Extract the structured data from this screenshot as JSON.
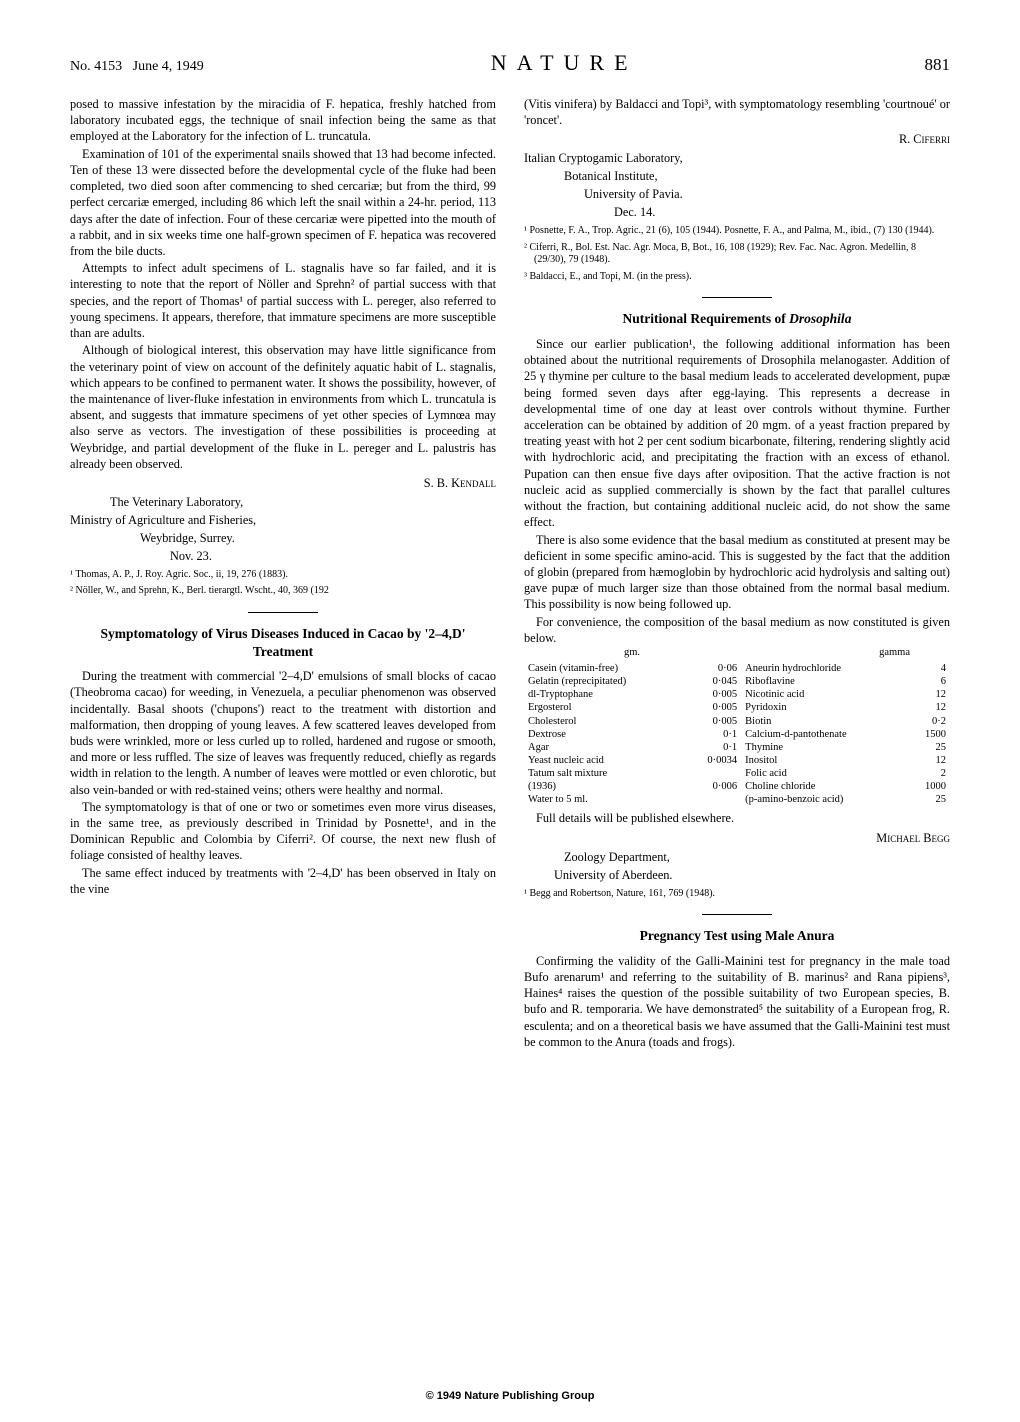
{
  "header": {
    "issue": "No. 4153",
    "date": "June 4, 1949",
    "journal": "NATURE",
    "page": "881"
  },
  "col1": {
    "p1": "posed to massive infestation by the miracidia of F. hepatica, freshly hatched from laboratory incubated eggs, the technique of snail infection being the same as that employed at the Laboratory for the infection of L. truncatula.",
    "p2": "Examination of 101 of the experimental snails showed that 13 had become infected. Ten of these 13 were dissected before the developmental cycle of the fluke had been completed, two died soon after commencing to shed cercariæ; but from the third, 99 perfect cercariæ emerged, including 86 which left the snail within a 24-hr. period, 113 days after the date of infection. Four of these cercariæ were pipetted into the mouth of a rabbit, and in six weeks time one half-grown specimen of F. hepatica was recovered from the bile ducts.",
    "p3": "Attempts to infect adult specimens of L. stagnalis have so far failed, and it is interesting to note that the report of Nöller and Sprehn² of partial success with that species, and the report of Thomas¹ of partial success with L. pereger, also referred to young specimens. It appears, therefore, that immature specimens are more susceptible than are adults.",
    "p4": "Although of biological interest, this observation may have little significance from the veterinary point of view on account of the definitely aquatic habit of L. stagnalis, which appears to be confined to permanent water. It shows the possibility, however, of the maintenance of liver-fluke infestation in environments from which L. truncatula is absent, and suggests that immature specimens of yet other species of Lymnœa may also serve as vectors. The investigation of these possibilities is proceeding at Weybridge, and partial development of the fluke in L. pereger and L. palustris has already been observed.",
    "sig1": "S. B. Kendall",
    "aff1a": "The Veterinary Laboratory,",
    "aff1b": "Ministry of Agriculture and Fisheries,",
    "aff1c": "Weybridge, Surrey.",
    "aff1d": "Nov. 23.",
    "ref1": "¹ Thomas, A. P., J. Roy. Agric. Soc., ii, 19, 276 (1883).",
    "ref2": "² Nöller, W., and Sprehn, K., Berl. tierargtl. Wscht., 40, 369 (192",
    "title2": "Symptomatology of Virus Diseases Induced in Cacao by '2–4,D' Treatment",
    "p5": "During the treatment with commercial '2–4,D' emulsions of small blocks of cacao (Theobroma cacao) for weeding, in Venezuela, a peculiar phenomenon was observed incidentally. Basal shoots ('chupons') react to the treatment with distortion and malformation, then dropping of young leaves. A few scattered leaves developed from buds were wrinkled, more or less curled up to rolled, hardened and rugose or smooth, and more or less ruffled. The size of leaves was frequently reduced, chiefly as regards width in relation to the length. A number of leaves were mottled or even chlorotic, but also vein-banded or with red-stained veins; others were healthy and normal.",
    "p6": "The symptomatology is that of one or two or sometimes even more virus diseases, in the same tree, as previously described in Trinidad by Posnette¹, and in the Dominican Republic and Colombia by Ciferri². Of course, the next new flush of foliage consisted of healthy leaves.",
    "p7": "The same effect induced by treatments with '2–4,D' has been observed in Italy on the vine"
  },
  "col2": {
    "p1": "(Vitis vinifera) by Baldacci and Topi³, with symptomatology resembling 'courtnoué' or 'roncet'.",
    "sig1": "R. Ciferri",
    "aff1a": "Italian Cryptogamic Laboratory,",
    "aff1b": "Botanical Institute,",
    "aff1c": "University of Pavia.",
    "aff1d": "Dec. 14.",
    "ref1": "¹ Posnette, F. A., Trop. Agric., 21 (6), 105 (1944). Posnette, F. A., and Palma, M., ibid., (7) 130 (1944).",
    "ref2": "² Ciferri, R., Bol. Est. Nac. Agr. Moca, B, Bot., 16, 108 (1929); Rev. Fac. Nac. Agron. Medellin, 8 (29/30), 79 (1948).",
    "ref3": "³ Baldacci, E., and Topi, M. (in the press).",
    "title2": "Nutritional Requirements of Drosophila",
    "p2": "Since our earlier publication¹, the following additional information has been obtained about the nutritional requirements of Drosophila melanogaster. Addition of 25 γ thymine per culture to the basal medium leads to accelerated development, pupæ being formed seven days after egg-laying. This represents a decrease in developmental time of one day at least over controls without thymine. Further acceleration can be obtained by addition of 20 mgm. of a yeast fraction prepared by treating yeast with hot 2 per cent sodium bicarbonate, filtering, rendering slightly acid with hydrochloric acid, and precipitating the fraction with an excess of ethanol. Pupation can then ensue five days after oviposition. That the active fraction is not nucleic acid as supplied commercially is shown by the fact that parallel cultures without the fraction, but containing additional nucleic acid, do not show the same effect.",
    "p3": "There is also some evidence that the basal medium as constituted at present may be deficient in some specific amino-acid. This is suggested by the fact that the addition of globin (prepared from hæmoglobin by hydrochloric acid hydrolysis and salting out) gave pupæ of much larger size than those obtained from the normal basal medium. This possibility is now being followed up.",
    "p4": "For convenience, the composition of the basal medium as now constituted is given below.",
    "table_head_left": "gm.",
    "table_head_right": "gamma",
    "table": [
      [
        "Casein (vitamin-free)",
        "0·06",
        "Aneurin hydrochloride",
        "4"
      ],
      [
        "Gelatin (reprecipitated)",
        "0·045",
        "Riboflavine",
        "6"
      ],
      [
        "dl-Tryptophane",
        "0·005",
        "Nicotinic acid",
        "12"
      ],
      [
        "Ergosterol",
        "0·005",
        "Pyridoxin",
        "12"
      ],
      [
        "Cholesterol",
        "0·005",
        "Biotin",
        "0·2"
      ],
      [
        "Dextrose",
        "0·1",
        "Calcium-d-pantothenate",
        "1500"
      ],
      [
        "Agar",
        "0·1",
        "Thymine",
        "25"
      ],
      [
        "Yeast nucleic acid",
        "0·0034",
        "Inositol",
        "12"
      ],
      [
        "Tatum salt mixture",
        "",
        "Folic acid",
        "2"
      ],
      [
        "  (1936)",
        "0·006",
        "Choline chloride",
        "1000"
      ],
      [
        "Water to 5 ml.",
        "",
        "(p-amino-benzoic acid)",
        "25"
      ]
    ],
    "p5": "Full details will be published elsewhere.",
    "sig2": "Michael Begg",
    "aff2a": "Zoology Department,",
    "aff2b": "University of Aberdeen.",
    "ref4": "¹ Begg and Robertson, Nature, 161, 769 (1948).",
    "title3": "Pregnancy Test using Male Anura",
    "p6": "Confirming the validity of the Galli-Mainini test for pregnancy in the male toad Bufo arenarum¹ and referring to the suitability of B. marinus² and Rana pipiens³, Haines⁴ raises the question of the possible suitability of two European species, B. bufo and R. temporaria. We have demonstrated⁵ the suitability of a European frog, R. esculenta; and on a theoretical basis we have assumed that the Galli-Mainini test must be common to the Anura (toads and frogs)."
  },
  "copyright": "© 1949 Nature Publishing Group"
}
